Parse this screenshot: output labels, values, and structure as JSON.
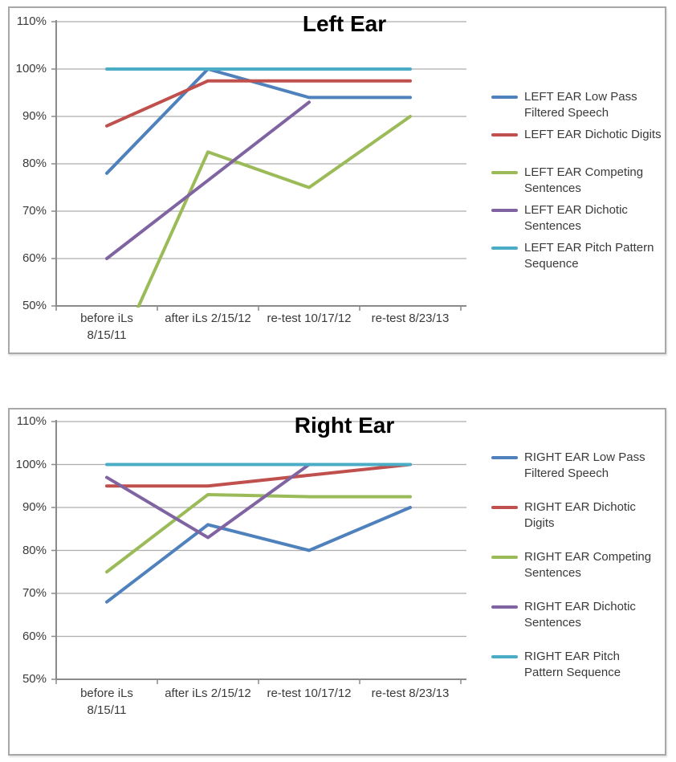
{
  "page": {
    "background": "#FFFFFF",
    "description": "Two stacked Excel-style line charts comparing auditory test scores before and after iLs therapy"
  },
  "colors": {
    "grid": "#ADADAD",
    "axis": "#8A8A8A",
    "text": "#3A3A3A",
    "title": "#000000",
    "frame_border": "#A8A8A8",
    "background": "#FFFFFF"
  },
  "chart_data": [
    {
      "type": "line",
      "title": "Left Ear",
      "categories": [
        "before iLs 8/15/11",
        "after iLs 2/15/12",
        "re-test 10/17/12",
        "re-test 8/23/13"
      ],
      "category_display_lines": [
        [
          "before iLs",
          "8/15/11"
        ],
        [
          "after iLs 2/15/12"
        ],
        [
          "re-test 10/17/12"
        ],
        [
          "re-test 8/23/13"
        ]
      ],
      "ylabel_ticks": [
        "110%",
        "100%",
        "90%",
        "80%",
        "70%",
        "60%",
        "50%"
      ],
      "ylim": [
        50,
        110
      ],
      "y_axis_format": "percent",
      "grid": true,
      "legend_position": "right",
      "series": [
        {
          "name": "LEFT EAR Low Pass Filtered Speech",
          "legend_lines": [
            "LEFT EAR Low Pass",
            "Filtered Speech"
          ],
          "color": "#4F81BD",
          "values": [
            78,
            100,
            94,
            94
          ]
        },
        {
          "name": "LEFT EAR Dichotic Digits",
          "legend_lines": [
            "LEFT EAR Dichotic Digits"
          ],
          "color": "#C0504D",
          "values": [
            88,
            97.5,
            97.5,
            97.5
          ]
        },
        {
          "name": "LEFT EAR Competing Sentences",
          "legend_lines": [
            "LEFT EAR Competing",
            "Sentences"
          ],
          "color": "#9BBB59",
          "values": [
            35,
            82.5,
            75,
            90
          ],
          "note": "first value is below the 50% axis minimum so the line is clipped at the plot bottom"
        },
        {
          "name": "LEFT EAR Dichotic Sentences",
          "legend_lines": [
            "LEFT EAR Dichotic",
            "Sentences"
          ],
          "color": "#8064A2",
          "values": [
            60,
            76.5,
            93,
            null
          ],
          "note": "line ends at third category; middle value read from straight line"
        },
        {
          "name": "LEFT EAR Pitch Pattern Sequence",
          "legend_lines": [
            "LEFT EAR Pitch Pattern",
            "Sequence"
          ],
          "color": "#4BACC6",
          "values": [
            100,
            100,
            100,
            100
          ]
        }
      ]
    },
    {
      "type": "line",
      "title": "Right Ear",
      "categories": [
        "before iLs 8/15/11",
        "after iLs 2/15/12",
        "re-test 10/17/12",
        "re-test 8/23/13"
      ],
      "category_display_lines": [
        [
          "before iLs",
          "8/15/11"
        ],
        [
          "after iLs 2/15/12"
        ],
        [
          "re-test 10/17/12"
        ],
        [
          "re-test 8/23/13"
        ]
      ],
      "ylabel_ticks": [
        "110%",
        "100%",
        "90%",
        "80%",
        "70%",
        "60%",
        "50%"
      ],
      "ylim": [
        50,
        110
      ],
      "y_axis_format": "percent",
      "grid": true,
      "legend_position": "right",
      "series": [
        {
          "name": "RIGHT EAR Low Pass Filtered Speech",
          "legend_lines": [
            "RIGHT EAR Low Pass",
            "Filtered Speech"
          ],
          "color": "#4F81BD",
          "values": [
            68,
            86,
            80,
            90
          ]
        },
        {
          "name": "RIGHT EAR Dichotic Digits",
          "legend_lines": [
            "RIGHT EAR Dichotic",
            "Digits"
          ],
          "color": "#C0504D",
          "values": [
            95,
            95,
            97.5,
            100
          ]
        },
        {
          "name": "RIGHT EAR Competing Sentences",
          "legend_lines": [
            "RIGHT EAR Competing",
            "Sentences"
          ],
          "color": "#9BBB59",
          "values": [
            75,
            93,
            92.5,
            92.5
          ]
        },
        {
          "name": "RIGHT EAR Dichotic Sentences",
          "legend_lines": [
            "RIGHT EAR Dichotic",
            "Sentences"
          ],
          "color": "#8064A2",
          "values": [
            97,
            83,
            100,
            null
          ],
          "note": "line ends at third category"
        },
        {
          "name": "RIGHT EAR Pitch Pattern Sequence",
          "legend_lines": [
            "RIGHT EAR Pitch",
            "Pattern Sequence"
          ],
          "color": "#4BACC6",
          "values": [
            100,
            100,
            100,
            100
          ]
        }
      ]
    }
  ]
}
